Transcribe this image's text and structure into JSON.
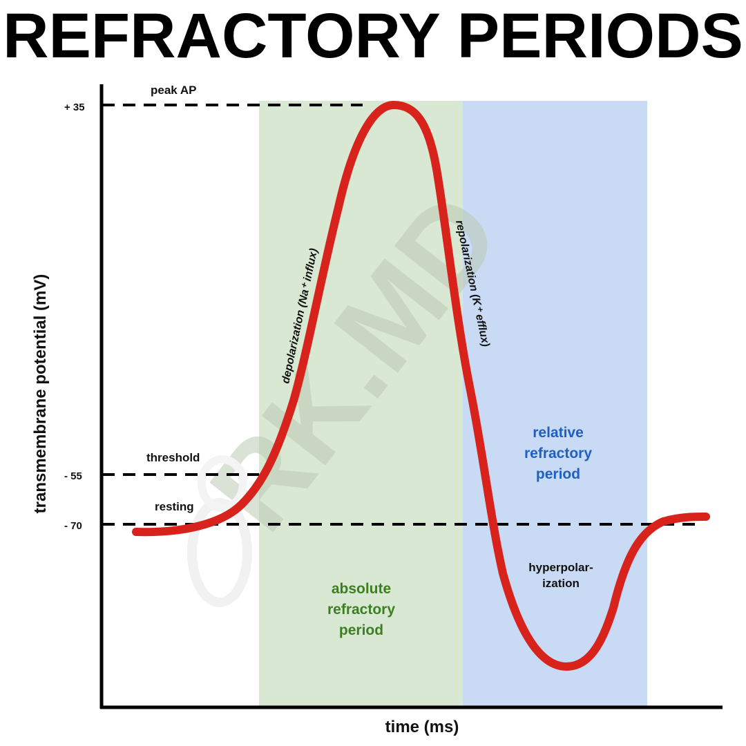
{
  "title": "REFRACTORY PERIODS",
  "axes": {
    "ylabel": "transmembrane potential (mV)",
    "xlabel": "time (ms)"
  },
  "levels": [
    {
      "key": "peak",
      "tick": "+ 35",
      "label": "peak AP",
      "mV": 35
    },
    {
      "key": "threshold",
      "tick": "- 55",
      "label": "threshold",
      "mV": -55
    },
    {
      "key": "resting",
      "tick": "- 70",
      "label": "resting",
      "mV": -70
    }
  ],
  "regions": {
    "absolute": {
      "lines": [
        "absolute",
        "refractory",
        "period"
      ],
      "color": "#d9e8d3",
      "text_color": "#3c7e22"
    },
    "relative": {
      "lines": [
        "relative",
        "refractory",
        "period"
      ],
      "color": "#c9daf5",
      "text_color": "#1f5fc4"
    }
  },
  "phase_labels": {
    "depolarization": "depolarization (Na⁺ influx)",
    "repolarization": "repolarization (K⁺ efflux)",
    "hyperpolarization": [
      "hyperpolar-",
      "ization"
    ]
  },
  "curve_color": "#d8231c",
  "watermark": "RK.MD"
}
